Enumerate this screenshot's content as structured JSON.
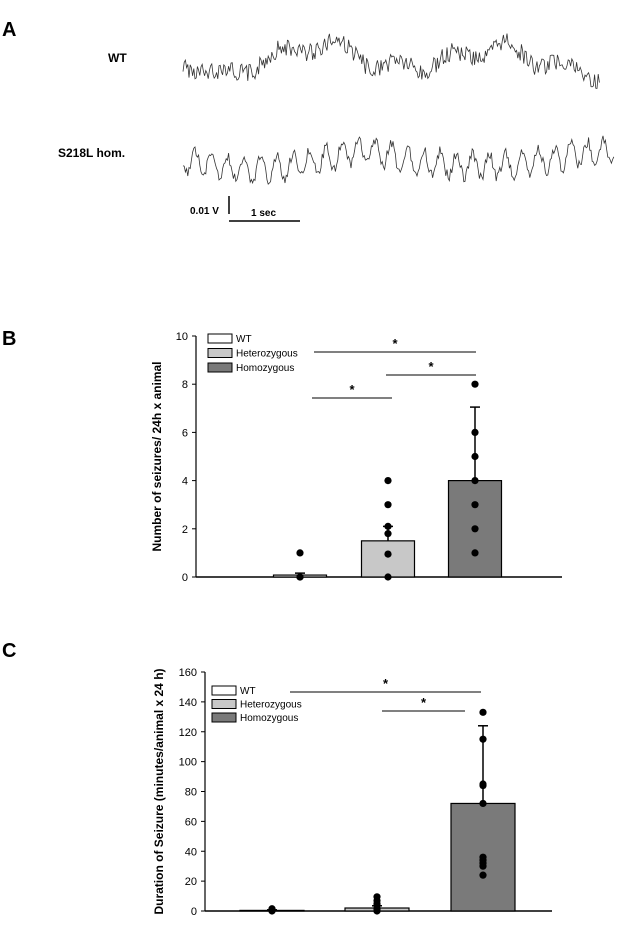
{
  "panel_a": {
    "letter": "A",
    "traces": [
      {
        "label": "WT"
      },
      {
        "label": "S218L hom."
      }
    ],
    "scale_voltage": "0.01 V",
    "scale_time": "1 sec"
  },
  "chart_data": [
    {
      "panel": "B",
      "type": "bar",
      "categories": [
        "WT",
        "Heterozygous",
        "Homozygous"
      ],
      "values": [
        0.08,
        1.5,
        4.0
      ],
      "errors": [
        0.08,
        0.6,
        3.05
      ],
      "points": [
        [
          0,
          0,
          1
        ],
        [
          0,
          0.95,
          1.8,
          2.1,
          3,
          4
        ],
        [
          1,
          2,
          3,
          4,
          5,
          6,
          8
        ]
      ],
      "colors": [
        "#ffffff",
        "#c8c8c8",
        "#7a7a7a"
      ],
      "title": "",
      "ylabel": "Number of seizures/ 24h x animal",
      "ylim": [
        0,
        10
      ],
      "yticks": [
        "0",
        "2",
        "4",
        "6",
        "8",
        "10"
      ],
      "legend": [
        "WT",
        "Heterozygous",
        "Homozygous"
      ],
      "legend_position": "top-left",
      "significance": [
        {
          "from": 1,
          "to": 2,
          "label": "*"
        },
        {
          "from": 0,
          "to": 1,
          "label": "*"
        },
        {
          "from": 0,
          "to": 2,
          "label": "*"
        }
      ]
    },
    {
      "panel": "C",
      "type": "bar",
      "categories": [
        "WT",
        "Heterozygous",
        "Homozygous"
      ],
      "values": [
        0.4,
        2.0,
        72
      ],
      "errors": [
        0.4,
        1.5,
        52
      ],
      "points": [
        [
          0,
          1.5
        ],
        [
          0,
          1,
          2,
          4,
          5,
          7,
          9.5
        ],
        [
          24,
          30,
          32,
          34,
          36,
          72,
          84,
          85,
          115,
          133
        ]
      ],
      "colors": [
        "#ffffff",
        "#c8c8c8",
        "#7a7a7a"
      ],
      "title": "",
      "ylabel": "Duration of Seizure (minutes/animal x 24 h)",
      "ylim": [
        0,
        160
      ],
      "yticks": [
        "0",
        "20",
        "40",
        "60",
        "80",
        "100",
        "120",
        "140",
        "160"
      ],
      "legend": [
        "WT",
        "Heterozygous",
        "Homozygous"
      ],
      "legend_position": "top-left",
      "significance": [
        {
          "from": 0,
          "to": 2,
          "label": "*"
        },
        {
          "from": 1,
          "to": 2,
          "label": "*"
        }
      ]
    }
  ]
}
